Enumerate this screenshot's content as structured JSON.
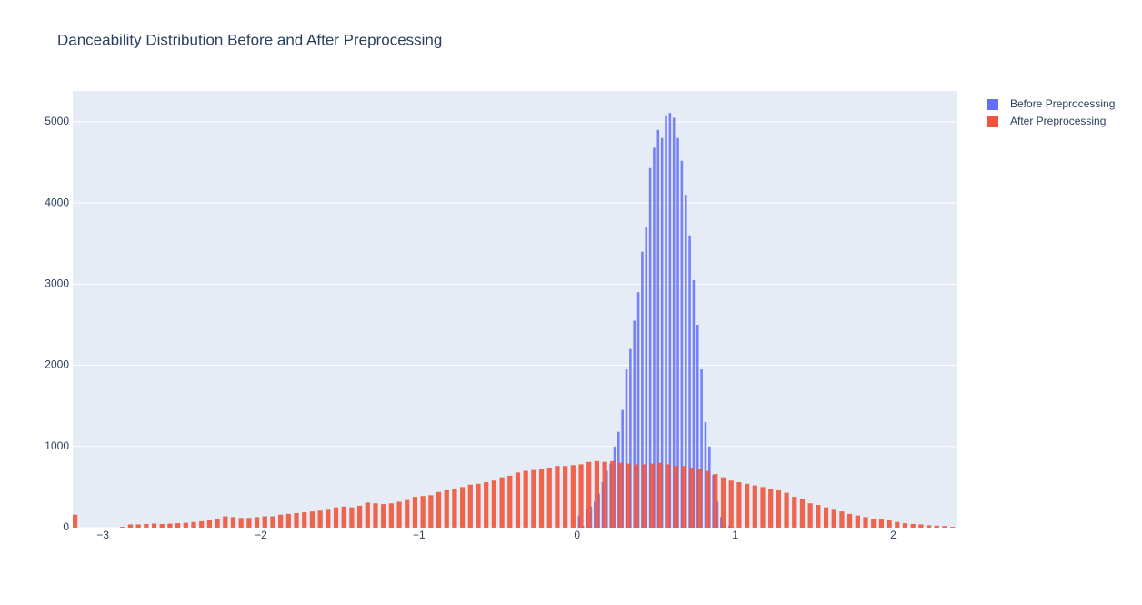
{
  "chart_data": {
    "type": "histogram",
    "title": "Danceability Distribution Before and After Preprocessing",
    "xlim": [
      -3.19,
      2.4
    ],
    "ylim": [
      0,
      5380
    ],
    "xticks": [
      {
        "value": -3,
        "label": "−3"
      },
      {
        "value": -2,
        "label": "−2"
      },
      {
        "value": -1,
        "label": "−1"
      },
      0,
      1,
      2
    ],
    "yticks": [
      0,
      1000,
      2000,
      3000,
      4000,
      5000
    ],
    "grid": true,
    "legend": "top-right",
    "series": [
      {
        "name": "Before Preprocessing",
        "color": "#636efa",
        "bins": [
          0,
          0.025,
          0.05,
          0.075,
          0.1,
          0.125,
          0.15,
          0.175,
          0.2,
          0.225,
          0.25,
          0.275,
          0.3,
          0.325,
          0.35,
          0.375,
          0.4,
          0.425,
          0.45,
          0.475,
          0.5,
          0.525,
          0.55,
          0.575,
          0.6,
          0.625,
          0.65,
          0.675,
          0.7,
          0.725,
          0.75,
          0.775,
          0.8,
          0.825,
          0.85,
          0.875,
          0.9,
          0.925,
          0.95,
          0.975,
          1
        ],
        "values": [
          150,
          20,
          230,
          260,
          320,
          420,
          560,
          700,
          790,
          1000,
          1180,
          1450,
          1950,
          2200,
          2550,
          2900,
          3400,
          3700,
          4430,
          4680,
          4900,
          4800,
          5080,
          5110,
          5050,
          4800,
          4520,
          4100,
          3600,
          3050,
          2500,
          1950,
          1300,
          1000,
          650,
          320,
          130,
          60,
          20,
          5
        ]
      },
      {
        "name": "After Preprocessing",
        "color": "#ef553b",
        "bins": [
          -3.2,
          -3.15,
          -3.1,
          -3.05,
          -3,
          -2.95,
          -2.9,
          -2.85,
          -2.8,
          -2.75,
          -2.7,
          -2.65,
          -2.6,
          -2.55,
          -2.5,
          -2.45,
          -2.4,
          -2.35,
          -2.3,
          -2.25,
          -2.2,
          -2.15,
          -2.1,
          -2.05,
          -2,
          -1.95,
          -1.9,
          -1.85,
          -1.8,
          -1.75,
          -1.7,
          -1.65,
          -1.6,
          -1.55,
          -1.5,
          -1.45,
          -1.4,
          -1.35,
          -1.3,
          -1.25,
          -1.2,
          -1.15,
          -1.1,
          -1.05,
          -1,
          -0.95,
          -0.9,
          -0.85,
          -0.8,
          -0.75,
          -0.7,
          -0.65,
          -0.6,
          -0.55,
          -0.5,
          -0.45,
          -0.4,
          -0.35,
          -0.3,
          -0.25,
          -0.2,
          -0.15,
          -0.1,
          -0.05,
          0,
          0.05,
          0.1,
          0.15,
          0.2,
          0.25,
          0.3,
          0.35,
          0.4,
          0.45,
          0.5,
          0.55,
          0.6,
          0.65,
          0.7,
          0.75,
          0.8,
          0.85,
          0.9,
          0.95,
          1,
          1.05,
          1.1,
          1.15,
          1.2,
          1.25,
          1.3,
          1.35,
          1.4,
          1.45,
          1.5,
          1.55,
          1.6,
          1.65,
          1.7,
          1.75,
          1.8,
          1.85,
          1.9,
          1.95,
          2,
          2.05,
          2.1,
          2.15,
          2.2,
          2.25,
          2.3,
          2.35,
          2.4
        ],
        "values": [
          160,
          0,
          0,
          0,
          0,
          0,
          10,
          40,
          40,
          45,
          50,
          45,
          50,
          55,
          60,
          70,
          80,
          90,
          110,
          140,
          130,
          120,
          120,
          130,
          140,
          140,
          160,
          170,
          180,
          190,
          200,
          210,
          220,
          250,
          260,
          250,
          270,
          310,
          300,
          290,
          300,
          320,
          340,
          380,
          390,
          400,
          440,
          460,
          480,
          500,
          530,
          540,
          560,
          580,
          620,
          640,
          680,
          700,
          710,
          720,
          740,
          760,
          760,
          770,
          780,
          810,
          820,
          810,
          820,
          800,
          790,
          780,
          780,
          790,
          800,
          780,
          760,
          760,
          740,
          720,
          700,
          660,
          620,
          580,
          560,
          540,
          520,
          500,
          480,
          460,
          430,
          380,
          350,
          300,
          280,
          250,
          220,
          200,
          170,
          150,
          130,
          110,
          100,
          90,
          70,
          55,
          45,
          40,
          30,
          25,
          20,
          10
        ]
      }
    ]
  }
}
